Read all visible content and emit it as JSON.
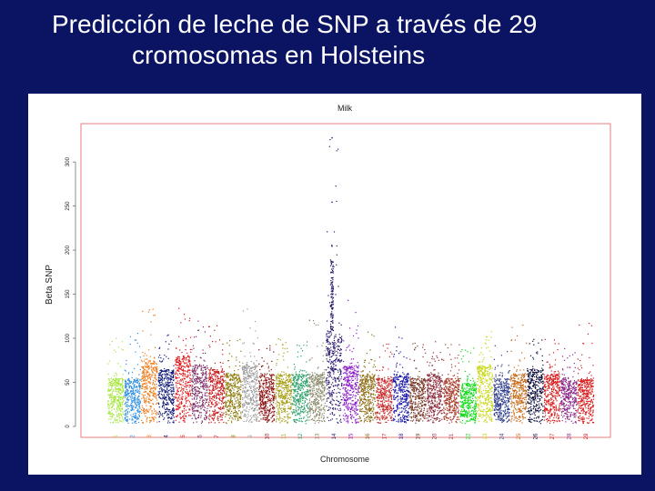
{
  "slide": {
    "title_line1": "Predicción de leche de SNP a través de 29",
    "title_line2": "cromosomas en Holsteins"
  },
  "colors": {
    "background": "#0b1463",
    "panel": "#ffffff",
    "plot_border": "#e06060",
    "title_text": "#ffffff"
  },
  "chart_data": {
    "type": "scatter",
    "subtype": "manhattan",
    "title": "Milk",
    "xlabel": "Chromosome",
    "ylabel": "Beta SNP",
    "ylim": [
      0,
      330
    ],
    "yticks": [
      0,
      50,
      100,
      150,
      200,
      250,
      300
    ],
    "grid": false,
    "legend": "none",
    "chromosomes": [
      {
        "label": "1",
        "color": "#a6e63c",
        "base_max": 55,
        "peak": 110
      },
      {
        "label": "2",
        "color": "#2f8fe0",
        "base_max": 55,
        "peak": 115
      },
      {
        "label": "3",
        "color": "#f07a18",
        "base_max": 75,
        "peak": 135
      },
      {
        "label": "4",
        "color": "#101a78",
        "base_max": 65,
        "peak": 105
      },
      {
        "label": "5",
        "color": "#e01818",
        "base_max": 80,
        "peak": 140
      },
      {
        "label": "6",
        "color": "#7a2c66",
        "base_max": 70,
        "peak": 125
      },
      {
        "label": "7",
        "color": "#c81a1a",
        "base_max": 65,
        "peak": 115
      },
      {
        "label": "8",
        "color": "#8a7a08",
        "base_max": 60,
        "peak": 100
      },
      {
        "label": "9",
        "color": "#9a9a9a",
        "base_max": 70,
        "peak": 135
      },
      {
        "label": "10",
        "color": "#8a1010",
        "base_max": 60,
        "peak": 95
      },
      {
        "label": "11",
        "color": "#a8a018",
        "base_max": 60,
        "peak": 100
      },
      {
        "label": "12",
        "color": "#28a06a",
        "base_max": 60,
        "peak": 100
      },
      {
        "label": "13",
        "color": "#8a8a6a",
        "base_max": 60,
        "peak": 130
      },
      {
        "label": "14",
        "color": "#2a1870",
        "base_max": 110,
        "peak": 328
      },
      {
        "label": "15",
        "color": "#8a18c8",
        "base_max": 70,
        "peak": 145
      },
      {
        "label": "16",
        "color": "#8a6a10",
        "base_max": 60,
        "peak": 110
      },
      {
        "label": "17",
        "color": "#c82a2a",
        "base_max": 55,
        "peak": 95
      },
      {
        "label": "18",
        "color": "#1a1aaa",
        "base_max": 60,
        "peak": 120
      },
      {
        "label": "19",
        "color": "#7a3a2a",
        "base_max": 55,
        "peak": 95
      },
      {
        "label": "20",
        "color": "#8a2a3a",
        "base_max": 60,
        "peak": 100
      },
      {
        "label": "21",
        "color": "#a83a2a",
        "base_max": 55,
        "peak": 95
      },
      {
        "label": "22",
        "color": "#10d818",
        "base_max": 50,
        "peak": 90
      },
      {
        "label": "23",
        "color": "#c8d818",
        "base_max": 70,
        "peak": 110
      },
      {
        "label": "24",
        "color": "#2a3a8a",
        "base_max": 55,
        "peak": 95
      },
      {
        "label": "25",
        "color": "#c86a18",
        "base_max": 60,
        "peak": 120
      },
      {
        "label": "26",
        "color": "#0a0a3a",
        "base_max": 65,
        "peak": 100
      },
      {
        "label": "27",
        "color": "#d81818",
        "base_max": 60,
        "peak": 100
      },
      {
        "label": "28",
        "color": "#8a2a8a",
        "base_max": 55,
        "peak": 95
      },
      {
        "label": "29",
        "color": "#d81818",
        "base_max": 55,
        "peak": 120
      }
    ]
  }
}
